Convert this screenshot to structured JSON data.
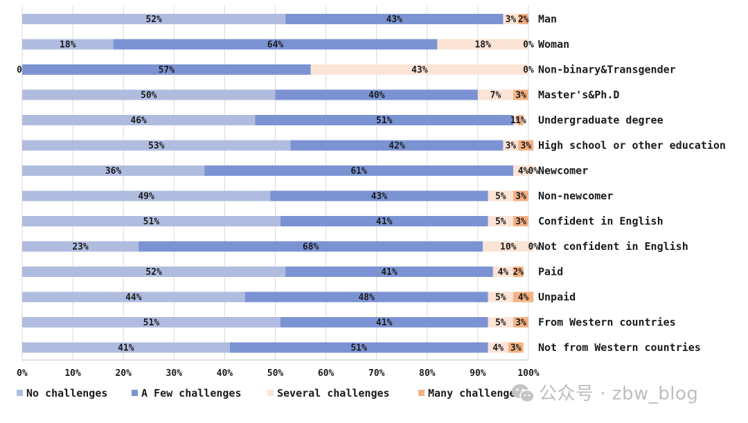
{
  "chart_data": {
    "type": "bar",
    "orientation": "horizontal",
    "stacked": true,
    "normalized": true,
    "categories": [
      "Man",
      "Woman",
      "Non-binary&Transgender",
      "Master's&Ph.D",
      "Undergraduate degree",
      "High school or other education",
      "Newcomer",
      "Non-newcomer",
      "Confident in English",
      "Not confident in English",
      "Paid",
      "Unpaid",
      "From Western countries",
      "Not from Western countries"
    ],
    "series": [
      {
        "name": "No challenges",
        "color": "#b0bcdf",
        "values": [
          52,
          18,
          0,
          50,
          46,
          53,
          36,
          49,
          51,
          23,
          52,
          44,
          51,
          41
        ]
      },
      {
        "name": "A Few challenges",
        "color": "#7b93d3",
        "values": [
          43,
          64,
          57,
          40,
          51,
          42,
          61,
          43,
          41,
          68,
          41,
          48,
          41,
          51
        ]
      },
      {
        "name": "Several challenges",
        "color": "#fbe3d6",
        "values": [
          3,
          18,
          43,
          7,
          1,
          3,
          4,
          5,
          5,
          10,
          4,
          5,
          5,
          4
        ]
      },
      {
        "name": "Many challenges",
        "color": "#f4b183",
        "values": [
          2,
          0,
          0,
          3,
          1,
          3,
          0,
          3,
          3,
          0,
          2,
          4,
          3,
          3
        ]
      }
    ],
    "value_suffix": "%",
    "xlim": [
      0,
      100
    ],
    "xticks": [
      "0%",
      "10%",
      "20%",
      "30%",
      "40%",
      "50%",
      "60%",
      "70%",
      "80%",
      "90%",
      "100%"
    ],
    "grid": "vertical",
    "legend": "bottom-left",
    "title": "",
    "xlabel": "",
    "ylabel": ""
  },
  "watermark": {
    "text": "公众号 · zbw_blog",
    "icon": "wechat-icon"
  }
}
